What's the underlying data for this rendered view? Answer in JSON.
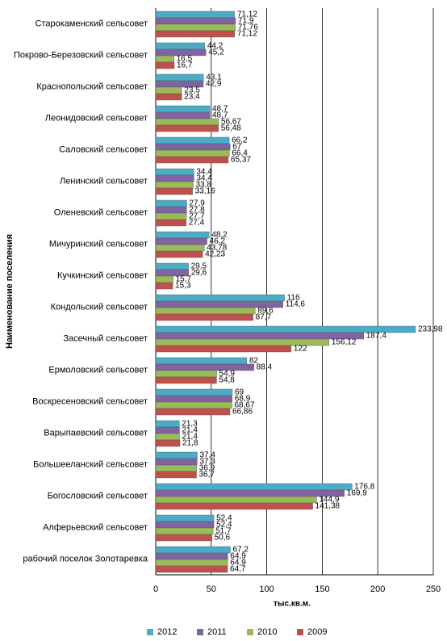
{
  "chart_data": {
    "type": "bar",
    "orientation": "horizontal",
    "x_label": "тыс.кв.м.",
    "y_label": "Наименование поселения",
    "categories": [
      "Старокаменский сельсовет",
      "Покрово-Березовский сельсовет",
      "Краснопольский сельсовет",
      "Леонидовский сельсовет",
      "Саловский сельсовет",
      "Ленинский сельсовет",
      "Оленевский сельсовет",
      "Мичуринский сельсовет",
      "Кучкинский сельсовет",
      "Кондольский сельсовет",
      "Засечный сельсовет",
      "Ермоловский сельсовет",
      "Воскресеновский сельсовет",
      "Варыпаевский сельсовет",
      "Большееланский сельсовет",
      "Богословский сельсовет",
      "Алферьевский сельсовет",
      "рабочий поселок Золотаревка"
    ],
    "series": [
      {
        "name": "2012",
        "color": "#4bacc6",
        "values": [
          71.12,
          44.2,
          43.1,
          48.7,
          66.2,
          34.4,
          27.9,
          48.2,
          29.5,
          116,
          233.98,
          82,
          69,
          21.3,
          37.4,
          176.8,
          52.4,
          67.2
        ],
        "value_labels": [
          "71,12",
          "44,2",
          "43,1",
          "48,7",
          "66,2",
          "34,4",
          "27,9",
          "48,2",
          "29,5",
          "116",
          "233,98",
          "82",
          "69",
          "21,3",
          "37,4",
          "176,8",
          "52,4",
          "67,2"
        ]
      },
      {
        "name": "2011",
        "color": "#8064a2",
        "values": [
          71.9,
          45.2,
          42.9,
          48.7,
          67,
          34.4,
          27.8,
          46.2,
          29.6,
          114.6,
          187.4,
          88.4,
          68.9,
          21.4,
          37.3,
          169.9,
          52.4,
          64.9
        ],
        "value_labels": [
          "71,9",
          "45,2",
          "42,9",
          "48,7",
          "67",
          "34,4",
          "27,8",
          "46,2",
          "29,6",
          "114,6",
          "187,4",
          "88,4",
          "68,9",
          "21,4",
          "37,3",
          "169,9",
          "52,4",
          "64,9"
        ]
      },
      {
        "name": "2010",
        "color": "#9bbb59",
        "values": [
          71.76,
          16.5,
          23.5,
          56.67,
          66.4,
          33.8,
          27.7,
          43.78,
          15.7,
          89.6,
          156.12,
          54.9,
          68.67,
          21.4,
          36.9,
          144.9,
          51.7,
          64.9
        ],
        "value_labels": [
          "71,76",
          "16,5",
          "23,5",
          "56,67",
          "66,4",
          "33,8",
          "27,7",
          "43,78",
          "15,7",
          "89,6",
          "156,12",
          "54,9",
          "68,67",
          "21,4",
          "36,9",
          "144,9",
          "51,7",
          "64,9"
        ]
      },
      {
        "name": "2009",
        "color": "#c0504d",
        "values": [
          71.12,
          16.7,
          23.4,
          56.48,
          65.37,
          33.16,
          27.4,
          42.23,
          15.3,
          87.7,
          122,
          54.8,
          66.86,
          21.8,
          36.7,
          141.38,
          50.6,
          64.7
        ],
        "value_labels": [
          "71,12",
          "16,7",
          "23,4",
          "56,48",
          "65,37",
          "33,16",
          "27,4",
          "42,23",
          "15,3",
          "87,7",
          "122",
          "54,8",
          "66,86",
          "21,8",
          "36,7",
          "141,38",
          "50,6",
          "64,7"
        ]
      }
    ],
    "xlim": [
      0,
      250
    ],
    "xticks": [
      0,
      50,
      100,
      150,
      200,
      250
    ],
    "grid": true,
    "legend": "bottom"
  }
}
